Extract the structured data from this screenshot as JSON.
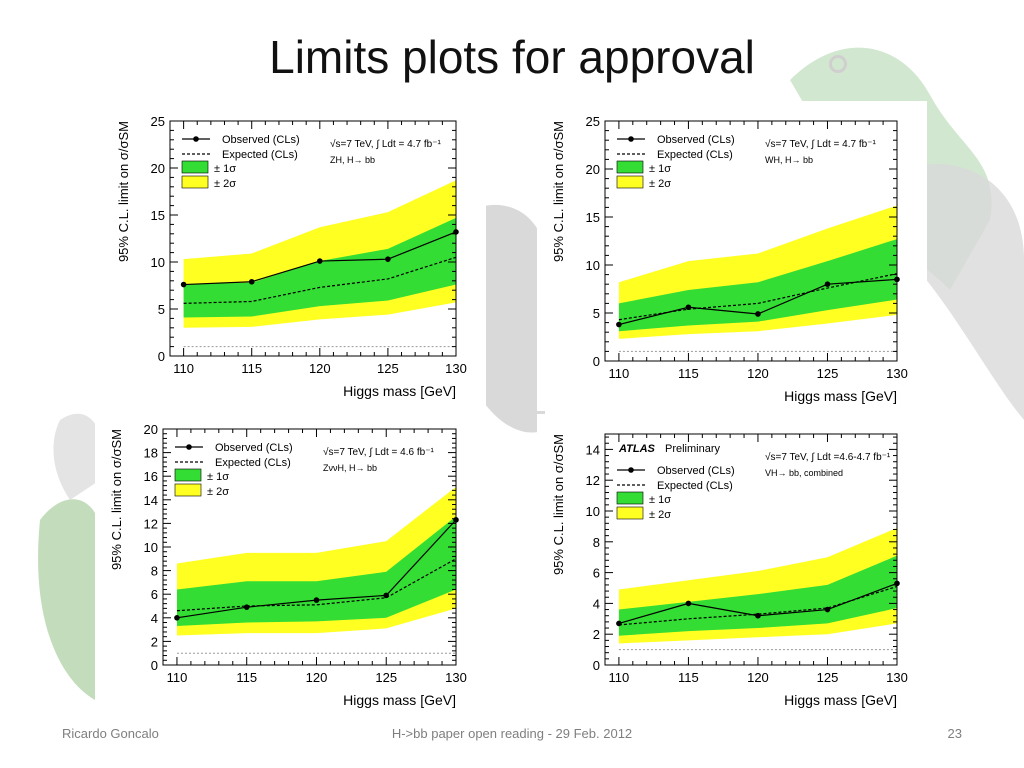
{
  "slide": {
    "title": "Limits plots for approval",
    "footer_left": "Ricardo Goncalo",
    "footer_center": "H->bb paper open reading - 29 Feb. 2012",
    "page_number": "23"
  },
  "colors": {
    "band_1sigma": "#33dd33",
    "band_2sigma": "#ffff22",
    "observed": "#000000",
    "expected": "#000000",
    "reference_line": "#999999"
  },
  "chart_data": [
    {
      "type": "line",
      "title": "",
      "xlabel": "Higgs mass [GeV]",
      "ylabel": "95% C.L. limit on σ/σSM",
      "x": [
        110,
        115,
        120,
        125,
        130
      ],
      "xlim": [
        109,
        130
      ],
      "ylim": [
        0,
        25
      ],
      "xticks": [
        110,
        115,
        120,
        125,
        130
      ],
      "yticks": [
        0,
        5,
        10,
        15,
        20,
        25
      ],
      "atlas_label": "",
      "energy_label": "√s=7 TeV, ∫ Ldt = 4.7 fb⁻¹",
      "channel_label": "ZH, H→ bb",
      "legend": [
        "Observed (CLs)",
        "Expected (CLs)",
        "± 1σ",
        "± 2σ"
      ],
      "legend_position": "top-left",
      "series": [
        {
          "name": "Observed (CLs)",
          "values": [
            7.6,
            7.9,
            10.1,
            10.3,
            13.2
          ]
        },
        {
          "name": "Expected (CLs)",
          "values": [
            5.6,
            5.8,
            7.3,
            8.2,
            10.5
          ]
        },
        {
          "name": "± 1σ",
          "low": [
            4.1,
            4.2,
            5.3,
            5.9,
            7.6
          ],
          "high": [
            7.6,
            7.8,
            10.1,
            11.4,
            14.7
          ]
        },
        {
          "name": "± 2σ",
          "low": [
            3.0,
            3.1,
            3.9,
            4.4,
            5.7
          ],
          "high": [
            10.3,
            10.9,
            13.7,
            15.3,
            18.7
          ]
        }
      ],
      "reference_y": 1
    },
    {
      "type": "line",
      "title": "",
      "xlabel": "Higgs mass [GeV]",
      "ylabel": "95% C.L. limit on σ/σSM",
      "x": [
        110,
        115,
        120,
        125,
        130
      ],
      "xlim": [
        109,
        130
      ],
      "ylim": [
        0,
        25
      ],
      "xticks": [
        110,
        115,
        120,
        125,
        130
      ],
      "yticks": [
        0,
        5,
        10,
        15,
        20,
        25
      ],
      "atlas_label": "",
      "energy_label": "√s=7 TeV, ∫ Ldt = 4.7 fb⁻¹",
      "channel_label": "WH, H→ bb",
      "legend": [
        "Observed (CLs)",
        "Expected (CLs)",
        "± 1σ",
        "± 2σ"
      ],
      "legend_position": "top-left",
      "series": [
        {
          "name": "Observed (CLs)",
          "values": [
            3.8,
            5.6,
            4.9,
            8.0,
            8.5
          ]
        },
        {
          "name": "Expected (CLs)",
          "values": [
            4.3,
            5.4,
            6.0,
            7.6,
            9.1
          ]
        },
        {
          "name": "± 1σ",
          "low": [
            3.1,
            3.7,
            4.1,
            5.3,
            6.4
          ],
          "high": [
            6.0,
            7.4,
            8.2,
            10.4,
            12.7
          ]
        },
        {
          "name": "± 2σ",
          "low": [
            2.3,
            2.8,
            3.1,
            3.9,
            4.8
          ],
          "high": [
            8.2,
            10.4,
            11.2,
            13.8,
            16.2
          ]
        }
      ],
      "reference_y": 1
    },
    {
      "type": "line",
      "title": "",
      "xlabel": "Higgs mass [GeV]",
      "ylabel": "95% C.L. limit on σ/σSM",
      "x": [
        110,
        115,
        120,
        125,
        130
      ],
      "xlim": [
        109,
        130
      ],
      "ylim": [
        0,
        20
      ],
      "xticks": [
        110,
        115,
        120,
        125,
        130
      ],
      "yticks": [
        0,
        2,
        4,
        6,
        8,
        10,
        12,
        14,
        16,
        18,
        20
      ],
      "atlas_label": "",
      "energy_label": "√s=7 TeV, ∫ Ldt = 4.6 fb⁻¹",
      "channel_label": "ZννH, H→ bb",
      "legend": [
        "Observed (CLs)",
        "Expected (CLs)",
        "± 1σ",
        "± 2σ"
      ],
      "legend_position": "top-left",
      "series": [
        {
          "name": "Observed (CLs)",
          "values": [
            4.0,
            4.9,
            5.5,
            5.9,
            12.3
          ]
        },
        {
          "name": "Expected (CLs)",
          "values": [
            4.6,
            5.0,
            5.1,
            5.7,
            9.0
          ]
        },
        {
          "name": "± 1σ",
          "low": [
            3.3,
            3.6,
            3.7,
            4.0,
            6.4
          ],
          "high": [
            6.4,
            7.1,
            7.1,
            7.9,
            12.6
          ]
        },
        {
          "name": "± 2σ",
          "low": [
            2.5,
            2.7,
            2.7,
            3.1,
            4.8
          ],
          "high": [
            8.6,
            9.5,
            9.5,
            10.5,
            15.1
          ]
        }
      ],
      "reference_y": 1
    },
    {
      "type": "line",
      "title": "",
      "xlabel": "Higgs mass [GeV]",
      "ylabel": "95% C.L. limit on σ/σSM",
      "x": [
        110,
        115,
        120,
        125,
        130
      ],
      "xlim": [
        109,
        130
      ],
      "ylim": [
        0,
        15
      ],
      "xticks": [
        110,
        115,
        120,
        125,
        130
      ],
      "yticks": [
        0,
        2,
        4,
        6,
        8,
        10,
        12,
        14
      ],
      "atlas_label": "ATLAS",
      "atlas_sublabel": "Preliminary",
      "energy_label": "√s=7 TeV, ∫ Ldt =4.6-4.7 fb⁻¹",
      "channel_label": "VH→ bb, combined",
      "legend": [
        "Observed (CLs)",
        "Expected (CLs)",
        "± 1σ",
        "± 2σ"
      ],
      "legend_position": "top-left",
      "series": [
        {
          "name": "Observed (CLs)",
          "values": [
            2.7,
            4.0,
            3.2,
            3.6,
            5.3
          ]
        },
        {
          "name": "Expected (CLs)",
          "values": [
            2.6,
            3.0,
            3.3,
            3.7,
            5.1
          ]
        },
        {
          "name": "± 1σ",
          "low": [
            1.9,
            2.2,
            2.4,
            2.7,
            3.7
          ],
          "high": [
            3.6,
            4.1,
            4.6,
            5.2,
            7.1
          ]
        },
        {
          "name": "± 2σ",
          "low": [
            1.4,
            1.6,
            1.8,
            2.0,
            2.7
          ],
          "high": [
            4.9,
            5.5,
            6.1,
            7.0,
            8.9
          ]
        }
      ],
      "reference_y": 1
    }
  ]
}
